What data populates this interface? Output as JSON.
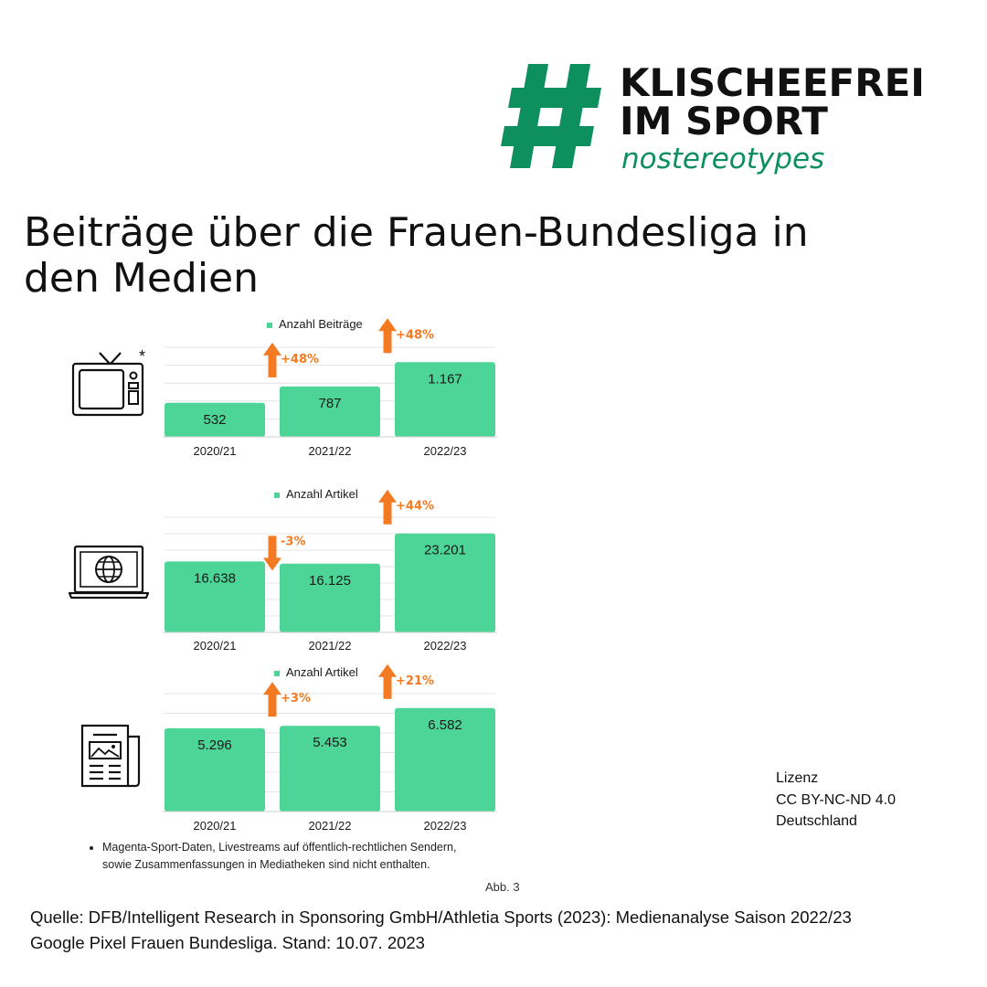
{
  "logo": {
    "line1": "KLISCHEEFREI",
    "line2": "IM SPORT",
    "tagline": "nostereotypes",
    "color": "#0e8f5e"
  },
  "title": "Beiträge über die Frauen-Bundesliga in den Medien",
  "colors": {
    "bar": "#4cd596",
    "arrow": "#f47a22",
    "text": "#1a1a1a"
  },
  "chart_data": [
    {
      "type": "bar",
      "medium_icon": "tv-icon",
      "medium_marker": "*",
      "legend": "Anzahl Beiträge",
      "categories": [
        "2020/21",
        "2021/22",
        "2022/23"
      ],
      "values": [
        532,
        787,
        1167
      ],
      "value_labels": [
        "532",
        "787",
        "1.167"
      ],
      "changes": [
        {
          "label": "+48%",
          "direction": "up"
        },
        {
          "label": "+48%",
          "direction": "up"
        }
      ],
      "ylim": [
        0,
        1400
      ],
      "grid": true
    },
    {
      "type": "bar",
      "medium_icon": "laptop-globe-icon",
      "legend": "Anzahl Artikel",
      "categories": [
        "2020/21",
        "2021/22",
        "2022/23"
      ],
      "values": [
        16638,
        16125,
        23201
      ],
      "value_labels": [
        "16.638",
        "16.125",
        "23.201"
      ],
      "changes": [
        {
          "label": "-3%",
          "direction": "down"
        },
        {
          "label": "+44%",
          "direction": "up"
        }
      ],
      "ylim": [
        0,
        27000
      ],
      "grid": true
    },
    {
      "type": "bar",
      "medium_icon": "newspaper-icon",
      "legend": "Anzahl Artikel",
      "categories": [
        "2020/21",
        "2021/22",
        "2022/23"
      ],
      "values": [
        5296,
        5453,
        6582
      ],
      "value_labels": [
        "5.296",
        "5.453",
        "6.582"
      ],
      "changes": [
        {
          "label": "+3%",
          "direction": "up"
        },
        {
          "label": "+21%",
          "direction": "up"
        }
      ],
      "ylim": [
        0,
        7500
      ],
      "grid": true
    }
  ],
  "footnote": "Magenta-Sport-Daten, Livestreams  auf öffentlich-rechtlichen Sendern, sowie Zusammenfassungen in Mediatheken sind nicht enthalten.",
  "figure_label": "Abb. 3",
  "license": {
    "line1": "Lizenz",
    "line2": "CC BY-NC-ND 4.0",
    "line3": "Deutschland"
  },
  "source": {
    "line1": "Quelle: DFB/Intelligent Research in Sponsoring GmbH/Athletia Sports (2023): Medienanalyse Saison 2022/23",
    "line2": "Google Pixel Frauen Bundesliga. Stand: 10.07. 2023"
  }
}
